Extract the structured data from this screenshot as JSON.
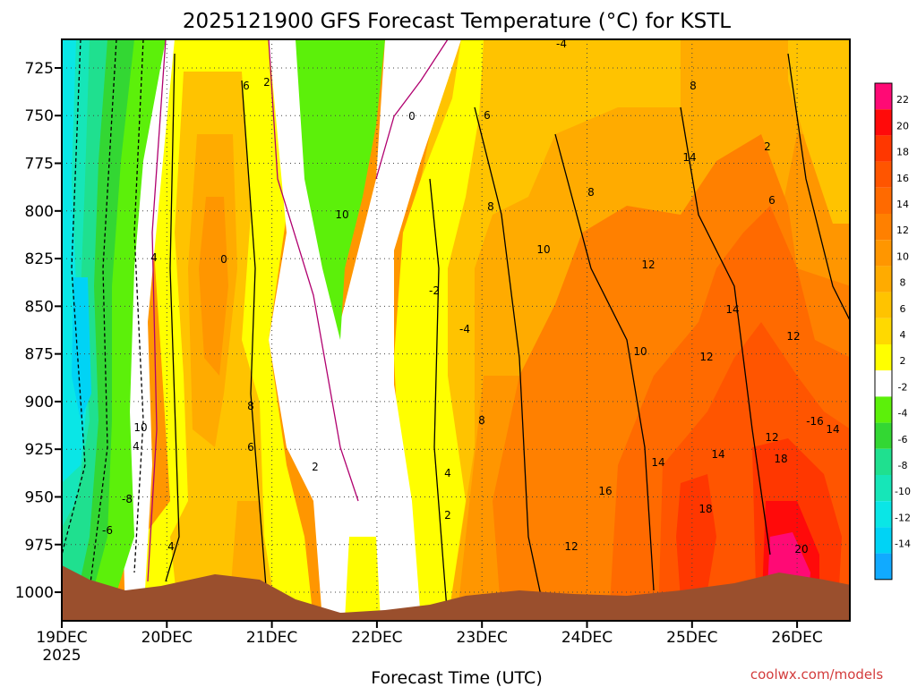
{
  "chart_data": {
    "type": "heatmap",
    "title": "2025121900 GFS Forecast Temperature (°C) for KSTL",
    "xlabel": "Forecast Time (UTC)",
    "ylabel": "",
    "credit": "coolwx.com/models",
    "y_axis": {
      "ticks": [
        "725",
        "750",
        "775",
        "800",
        "825",
        "850",
        "875",
        "900",
        "925",
        "950",
        "975",
        "1000"
      ],
      "range": [
        710,
        1015
      ]
    },
    "x_axis": {
      "ticks": [
        "19DEC",
        "20DEC",
        "21DEC",
        "22DEC",
        "23DEC",
        "24DEC",
        "25DEC",
        "26DEC"
      ],
      "first_year": "2025"
    },
    "colorbar": {
      "labels": [
        "22",
        "20",
        "18",
        "16",
        "14",
        "12",
        "10",
        "8",
        "6",
        "4",
        "2",
        "-2",
        "-4",
        "-6",
        "-8",
        "-10",
        "-12",
        "-14"
      ],
      "colors": [
        "#ff0a75",
        "#ff0a0a",
        "#ff3700",
        "#ff5500",
        "#ff6a00",
        "#ff8000",
        "#ff9600",
        "#ffab00",
        "#ffc300",
        "#ffd900",
        "#ffff00",
        "#ffffff",
        "#5cf00a",
        "#33d733",
        "#1fe08f",
        "#16e6b8",
        "#0ae6e6",
        "#00d3f5",
        "#11aaff"
      ]
    },
    "contour_labels": [
      "6",
      "2",
      "0",
      "6",
      "-4",
      "10",
      "0",
      "4",
      "8",
      "8",
      "8",
      "10",
      "8",
      "12",
      "14",
      "2",
      "6",
      "-2",
      "-4",
      "10",
      "4",
      "6",
      "8",
      "10",
      "12",
      "14",
      "12",
      "-8",
      "-6",
      "4",
      "2",
      "4",
      "2",
      "12",
      "14",
      "16",
      "14",
      "-16",
      "14",
      "12",
      "18",
      "18",
      "20"
    ],
    "series": [
      {
        "name": "terrain",
        "color": "#9a4f2d"
      }
    ]
  }
}
